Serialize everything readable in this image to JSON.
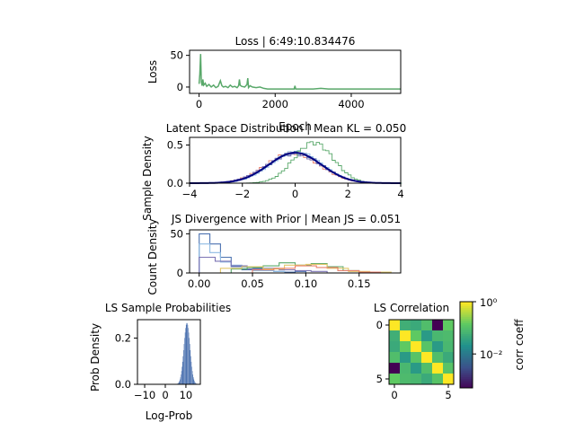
{
  "chart_data": [
    {
      "type": "line",
      "title": "Loss | 6:49:10.834476",
      "xlabel": "Epoch",
      "ylabel": "Loss",
      "xlim": [
        -250,
        5300
      ],
      "ylim": [
        -10,
        58
      ],
      "xticks": [
        "0",
        "2000",
        "4000"
      ],
      "yticks": [
        "0",
        "50"
      ],
      "color": "#59a86a",
      "series": [
        {
          "x": [
            0,
            20,
            40,
            60,
            80,
            100,
            120,
            160,
            200,
            260,
            320,
            380,
            440,
            500,
            560,
            600,
            640,
            700,
            760,
            820,
            880,
            940,
            1000,
            1040,
            1060,
            1080,
            1120,
            1200,
            1260,
            1280,
            1300,
            1340,
            1400,
            1500,
            1600,
            1700,
            1800,
            2000,
            2200,
            2400,
            2500,
            2520,
            2540,
            2600,
            2800,
            3000,
            3200,
            3400,
            3600,
            3800,
            4000,
            4200,
            4400,
            4600,
            4800,
            5000,
            5200,
            5300
          ],
          "y": [
            5,
            20,
            52,
            8,
            2,
            12,
            3,
            6,
            1,
            4,
            0,
            3,
            -1,
            1,
            10,
            2,
            0,
            1,
            -1,
            3,
            0,
            1,
            -1,
            2,
            12,
            3,
            1,
            0,
            4,
            14,
            -1,
            2,
            0,
            -1,
            0,
            -2,
            -3,
            -3,
            -3,
            -3,
            -3,
            2,
            -3,
            -3,
            -3,
            -3,
            -2,
            -3,
            -3,
            -3,
            -3,
            -3,
            -3,
            -3,
            -3,
            -3,
            -3,
            -3
          ]
        }
      ]
    },
    {
      "type": "line",
      "title": "Latent Space Distribution | Mean KL = 0.050",
      "ylabel": "Sample Density",
      "xlim": [
        -4,
        4
      ],
      "ylim": [
        0,
        0.6
      ],
      "xticks": [
        "−4",
        "−2",
        "0",
        "2",
        "4"
      ],
      "yticks": [
        "0.0",
        "0.5"
      ],
      "series": [
        {
          "mean": -0.1,
          "sd": 1.02,
          "color": "#e8816c"
        },
        {
          "mean": 0.0,
          "sd": 1.0,
          "color": "#4c72b0"
        },
        {
          "mean": 0.05,
          "sd": 0.98,
          "color": "#8fbbe3"
        },
        {
          "mean": -0.05,
          "sd": 1.05,
          "color": "#7c74b4"
        },
        {
          "mean": 0.7,
          "sd": 0.75,
          "color": "#59a86a"
        },
        {
          "mean": 0.0,
          "sd": 1.0,
          "color": "#000080"
        }
      ]
    },
    {
      "type": "line",
      "title": "JS Divergence with Prior | Mean JS = 0.051",
      "ylabel": "Count Density",
      "xlim": [
        -0.009,
        0.189
      ],
      "ylim": [
        0,
        55
      ],
      "xticks": [
        "0.00",
        "0.05",
        "0.10",
        "0.15"
      ],
      "yticks": [
        "0",
        "50"
      ],
      "series": [
        {
          "color": "#4c72b0",
          "edges": [
            0,
            0.01,
            0.02,
            0.03,
            0.04,
            0.05,
            0.06,
            0.07,
            0.08,
            0.09,
            0.1
          ],
          "counts": [
            50,
            37,
            20,
            8,
            4,
            6,
            3,
            2,
            1,
            2
          ]
        },
        {
          "color": "#8fbbe3",
          "edges": [
            0,
            0.01,
            0.02,
            0.03,
            0.04,
            0.05,
            0.06,
            0.07,
            0.08
          ],
          "counts": [
            37,
            26,
            14,
            10,
            7,
            3,
            3,
            2
          ]
        },
        {
          "color": "#7c74b4",
          "edges": [
            0,
            0.015,
            0.03,
            0.045,
            0.06,
            0.075,
            0.09,
            0.105,
            0.12
          ],
          "counts": [
            20,
            15,
            9,
            5,
            6,
            4,
            3,
            2
          ]
        },
        {
          "color": "#59a86a",
          "edges": [
            0.03,
            0.045,
            0.06,
            0.075,
            0.09,
            0.105,
            0.12,
            0.135,
            0.15
          ],
          "counts": [
            5,
            7,
            9,
            13,
            10,
            12,
            8,
            3
          ]
        },
        {
          "color": "#e3c86b",
          "edges": [
            0.02,
            0.04,
            0.06,
            0.08,
            0.1,
            0.12,
            0.14,
            0.16,
            0.18
          ],
          "counts": [
            6,
            8,
            5,
            10,
            11,
            6,
            2,
            1
          ]
        },
        {
          "color": "#e8816c",
          "edges": [
            0.05,
            0.07,
            0.09,
            0.11,
            0.13,
            0.15,
            0.17
          ],
          "counts": [
            4,
            6,
            9,
            7,
            3,
            1
          ]
        }
      ]
    },
    {
      "type": "bar",
      "title": "LS Sample Probabilities",
      "xlabel": "Log-Prob",
      "ylabel": "Prob Density",
      "xlim": [
        -13.5,
        17
      ],
      "ylim": [
        0,
        0.28
      ],
      "xticks": [
        "−10",
        "0",
        "10"
      ],
      "yticks": [
        "0.0",
        "0.2"
      ],
      "color": "#4c72b0",
      "mean": 10.5,
      "sd": 1.5
    },
    {
      "type": "heatmap",
      "title": "LS Correlation",
      "colorbar_label": "corr coeff",
      "colorbar_ticks": [
        "10⁰",
        "10⁻²"
      ],
      "xticks": [
        "0",
        "5"
      ],
      "yticks": [
        "0",
        "5"
      ],
      "values": [
        [
          1.0,
          0.06,
          0.05,
          0.1,
          0.0005,
          0.15
        ],
        [
          0.06,
          1.0,
          0.15,
          0.03,
          0.08,
          0.09
        ],
        [
          0.05,
          0.15,
          1.0,
          0.12,
          0.03,
          0.08
        ],
        [
          0.1,
          0.03,
          0.12,
          1.0,
          0.1,
          0.05
        ],
        [
          0.0005,
          0.08,
          0.03,
          0.1,
          1.0,
          0.12
        ],
        [
          0.15,
          0.09,
          0.08,
          0.05,
          0.12,
          1.0
        ]
      ]
    }
  ]
}
